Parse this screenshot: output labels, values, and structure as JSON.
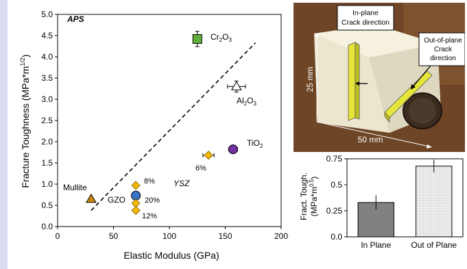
{
  "chart_data": [
    {
      "type": "scatter",
      "title": "APS",
      "xlabel": "Elastic Modulus (GPa)",
      "ylabel": "Fracture Toughness (MPa*m",
      "ylabel_sup": "1/2",
      "ylabel_end": ")",
      "xlim": [
        0,
        200
      ],
      "ylim": [
        0,
        5.0
      ],
      "xticks": [
        "0",
        "50",
        "100",
        "150",
        "200"
      ],
      "xtick_values": [
        0,
        50,
        100,
        150,
        200
      ],
      "yticks": [
        "0.0",
        "0.5",
        "1.0",
        "1.5",
        "2.0",
        "2.5",
        "3.0",
        "3.5",
        "4.0",
        "4.5",
        "5.0"
      ],
      "ytick_values": [
        0,
        0.5,
        1.0,
        1.5,
        2.0,
        2.5,
        3.0,
        3.5,
        4.0,
        4.5,
        5.0
      ],
      "grid": false,
      "trend_line": {
        "x": [
          30,
          177
        ],
        "y": [
          0.38,
          4.33
        ]
      },
      "points": [
        {
          "name": "Cr2O3",
          "x": 125,
          "y": 4.42,
          "xerr": 3,
          "yerr": 0.18,
          "marker": "square",
          "color": "#5fae3a"
        },
        {
          "name": "Al2O3",
          "x": 160,
          "y": 3.3,
          "xerr": 8,
          "yerr": 0.13,
          "marker": "triangle-open",
          "color": "#ffffff"
        },
        {
          "name": "TiO2",
          "x": 157,
          "y": 1.82,
          "xerr": 4,
          "yerr": 0.07,
          "marker": "circle",
          "color": "#7030a0"
        },
        {
          "name": "YSZ 6%",
          "x": 135,
          "y": 1.68,
          "xerr": 5,
          "yerr": 0.05,
          "marker": "diamond",
          "color": "#f5b800"
        },
        {
          "name": "Mullite",
          "x": 30,
          "y": 0.65,
          "xerr": 0,
          "yerr": 0.04,
          "marker": "triangle",
          "color": "#c8860c"
        },
        {
          "name": "GZO",
          "x": 70,
          "y": 0.73,
          "xerr": 0,
          "yerr": 0,
          "marker": "circle",
          "color": "#3a74c8"
        },
        {
          "name": "YSZ 8%",
          "x": 70,
          "y": 0.97,
          "xerr": 0,
          "yerr": 0,
          "marker": "diamond",
          "color": "#f5b800"
        },
        {
          "name": "YSZ a",
          "x": 70,
          "y": 0.55,
          "xerr": 0,
          "yerr": 0,
          "marker": "diamond",
          "color": "#f5b800"
        },
        {
          "name": "YSZ 12%",
          "x": 70,
          "y": 0.38,
          "xerr": 0,
          "yerr": 0,
          "marker": "diamond",
          "color": "#f5b800"
        }
      ],
      "annotations": [
        {
          "text": "Cr",
          "sub": "2",
          "text2": "O",
          "sub2": "3"
        },
        {
          "text": "Al",
          "sub": "2",
          "text2": "O",
          "sub2": "3"
        },
        {
          "text": "TiO",
          "sub": "2",
          "text2": "",
          "sub2": ""
        },
        {
          "text": "6%"
        },
        {
          "text": "YSZ"
        },
        {
          "text": "Mullite"
        },
        {
          "text": "GZO"
        },
        {
          "text": "8%"
        },
        {
          "text": "20%"
        },
        {
          "text": "12%"
        }
      ]
    },
    {
      "type": "bar",
      "categories": [
        "In Plane",
        "Out of Plane"
      ],
      "values": [
        0.33,
        0.68
      ],
      "errors": [
        0.07,
        0.06
      ],
      "ylabel_line1": "Fract. Tough.",
      "ylabel_line2": "(MPa*m",
      "ylabel_sup": "0.5",
      "ylabel_end": ")",
      "ylim": [
        0,
        0.75
      ],
      "yticks": [
        "0.0",
        "0.25",
        "0.5",
        "0.75"
      ],
      "ytick_values": [
        0,
        0.25,
        0.5,
        0.75
      ],
      "bar_colors": [
        "#8a8a8a",
        "#ececec"
      ]
    }
  ],
  "photo": {
    "label_inplane_1": "In-plane",
    "label_inplane_2": "Crack direction",
    "label_outplane_1": "Out-of-plane",
    "label_outplane_2": "Crack",
    "label_outplane_3": "direction",
    "dim_height": "25 mm",
    "dim_width": "50 mm",
    "colors": {
      "background": "#6e4526",
      "block": "#ece6cf",
      "bar": "#e6e63a"
    }
  }
}
